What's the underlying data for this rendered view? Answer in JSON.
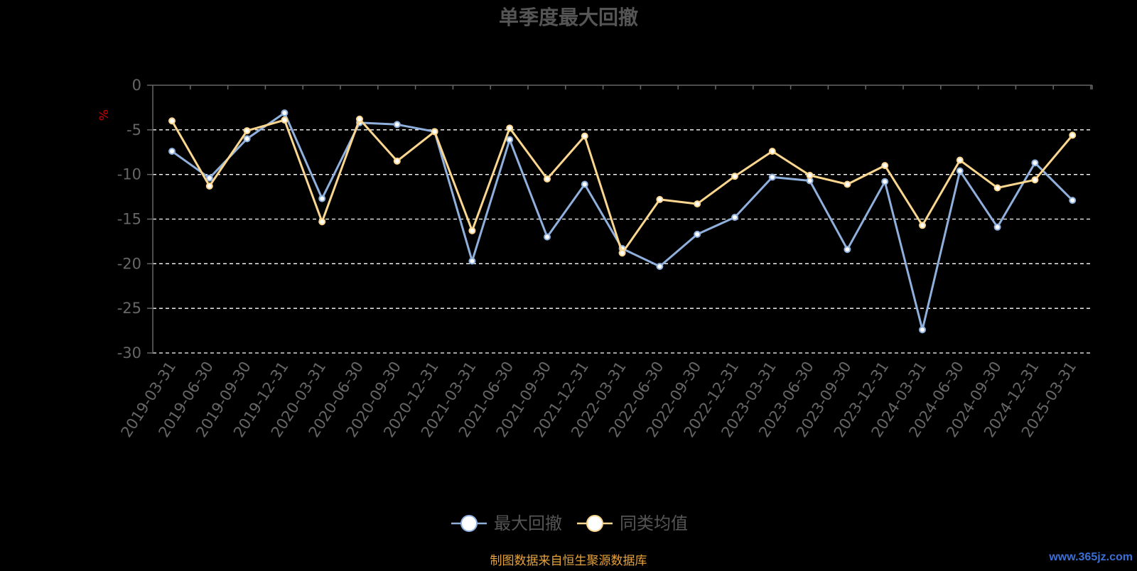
{
  "page": {
    "source_note": "制图数据来自恒生聚源数据库",
    "watermark": "www.365jz.com"
  },
  "colors": {
    "background": "#000000",
    "title": "#555555",
    "axis": "#666666",
    "tick_label": "#666666",
    "grid": "#ffffff",
    "unit_label": "#cc0000",
    "series_max_drawdown": "#8fb0dd",
    "series_peer_avg": "#fbd68f",
    "source_note": "#e6a23c",
    "watermark": "#3b6fd6"
  },
  "chart_data": {
    "type": "line",
    "title": "单季度最大回撤",
    "ylabel": "%",
    "xlabel": "",
    "ylim": [
      -30,
      0
    ],
    "yticks": [
      0,
      -5,
      -10,
      -15,
      -20,
      -25,
      -30
    ],
    "grid": true,
    "legend_position": "bottom-center",
    "categories": [
      "2019-03-31",
      "2019-06-30",
      "2019-09-30",
      "2019-12-31",
      "2020-03-31",
      "2020-06-30",
      "2020-09-30",
      "2020-12-31",
      "2021-03-31",
      "2021-06-30",
      "2021-09-30",
      "2021-12-31",
      "2022-03-31",
      "2022-06-30",
      "2022-09-30",
      "2022-12-31",
      "2023-03-31",
      "2023-06-30",
      "2023-09-30",
      "2023-12-31",
      "2024-03-31",
      "2024-06-30",
      "2024-09-30",
      "2024-12-31",
      "2025-03-31"
    ],
    "series": [
      {
        "name": "最大回撤",
        "color": "#8fb0dd",
        "values": [
          -7.4,
          -10.4,
          -6.0,
          -3.1,
          -12.7,
          -4.2,
          -4.4,
          -5.2,
          -19.7,
          -6.1,
          -17.0,
          -11.1,
          -18.3,
          -20.3,
          -16.7,
          -14.8,
          -10.3,
          -10.7,
          -18.4,
          -10.8,
          -27.4,
          -9.6,
          -15.9,
          -8.7,
          -12.9
        ]
      },
      {
        "name": "同类均值",
        "color": "#fbd68f",
        "values": [
          -4.0,
          -11.3,
          -5.1,
          -3.9,
          -15.3,
          -3.8,
          -8.5,
          -5.2,
          -16.3,
          -4.8,
          -10.5,
          -5.7,
          -18.8,
          -12.8,
          -13.3,
          -10.2,
          -7.4,
          -10.1,
          -11.1,
          -9.0,
          -15.7,
          -8.4,
          -11.5,
          -10.6,
          -5.6
        ]
      }
    ]
  }
}
